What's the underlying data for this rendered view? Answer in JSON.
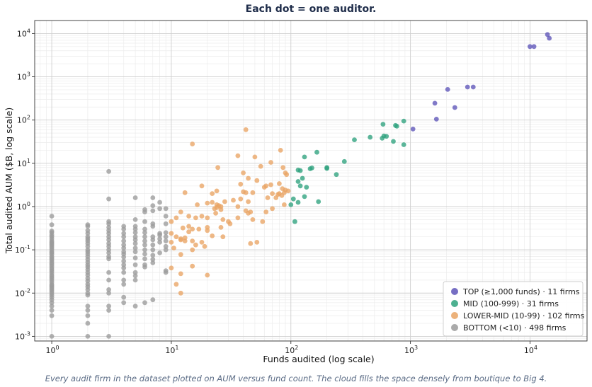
{
  "chart_data": {
    "type": "scatter",
    "title": "Each dot = one auditor.",
    "subtitle": "Every audit firm in the dataset plotted on AUM versus fund count. The cloud fills the space densely from boutique to Big 4.",
    "xlabel": "Funds audited (log scale)",
    "ylabel": "Total audited AUM ($B, log scale)",
    "xscale": "log",
    "yscale": "log",
    "xlim": [
      0.72,
      30000
    ],
    "ylim": [
      0.00078,
      20000
    ],
    "xticks": [
      1,
      10,
      100,
      1000,
      10000
    ],
    "yticks": [
      0.001,
      0.01,
      0.1,
      1,
      10,
      100,
      1000,
      10000
    ],
    "grid": true,
    "legend_position": "bottom-right",
    "colors": {
      "top": "#5e55b8",
      "mid": "#2ea27d",
      "lower_mid": "#e9a464",
      "bottom": "#9b9b9b"
    },
    "series": [
      {
        "key": "top",
        "name": "TOP (≥1,000 funds) · 11 firms",
        "points": [
          [
            14000,
            9500
          ],
          [
            14500,
            7800
          ],
          [
            10000,
            5000
          ],
          [
            10800,
            5000
          ],
          [
            3000,
            580
          ],
          [
            3350,
            580
          ],
          [
            2050,
            510
          ],
          [
            2350,
            195
          ],
          [
            1600,
            245
          ],
          [
            1650,
            105
          ],
          [
            1050,
            62
          ]
        ]
      },
      {
        "key": "mid",
        "name": "MID (100-999) · 31 firms",
        "points": [
          [
            880,
            95
          ],
          [
            590,
            80
          ],
          [
            750,
            75
          ],
          [
            770,
            72
          ],
          [
            460,
            40
          ],
          [
            580,
            38
          ],
          [
            600,
            43
          ],
          [
            630,
            42
          ],
          [
            340,
            35
          ],
          [
            720,
            32
          ],
          [
            880,
            27
          ],
          [
            165,
            18
          ],
          [
            130,
            14
          ],
          [
            280,
            11
          ],
          [
            200,
            8
          ],
          [
            200,
            7.6
          ],
          [
            145,
            7.5
          ],
          [
            115,
            7
          ],
          [
            120,
            6.8
          ],
          [
            240,
            5.5
          ],
          [
            125,
            4.5
          ],
          [
            115,
            3.8
          ],
          [
            120,
            3
          ],
          [
            135,
            2.8
          ],
          [
            130,
            1.7
          ],
          [
            170,
            1.3
          ],
          [
            115,
            1.25
          ],
          [
            105,
            1.5
          ],
          [
            100,
            1.1
          ],
          [
            108,
            0.45
          ],
          [
            150,
            7.8
          ]
        ]
      },
      {
        "key": "lower_mid",
        "name": "LOWER-MID (10-99) · 102 firms",
        "points": [
          [
            15,
            28
          ],
          [
            42,
            60
          ],
          [
            36,
            15
          ],
          [
            50,
            14
          ],
          [
            82,
            20
          ],
          [
            68,
            10.5
          ],
          [
            86,
            8
          ],
          [
            24.5,
            8
          ],
          [
            56,
            8.5
          ],
          [
            90,
            6
          ],
          [
            92,
            5.5
          ],
          [
            40,
            6
          ],
          [
            44,
            4.5
          ],
          [
            52,
            4
          ],
          [
            18,
            3
          ],
          [
            38,
            3.3
          ],
          [
            60,
            2.8
          ],
          [
            62,
            3
          ],
          [
            68,
            3.2
          ],
          [
            80,
            3.4
          ],
          [
            90,
            2.4
          ],
          [
            95,
            2.3
          ],
          [
            85,
            2.6
          ],
          [
            78,
            1.9
          ],
          [
            75,
            1.6
          ],
          [
            13,
            2.1
          ],
          [
            24,
            2.3
          ],
          [
            22,
            2
          ],
          [
            40,
            2.2
          ],
          [
            42,
            2.1
          ],
          [
            48,
            2.1
          ],
          [
            64,
            1.6
          ],
          [
            70,
            2
          ],
          [
            80,
            2
          ],
          [
            84,
            1.8
          ],
          [
            88,
            2.1
          ],
          [
            33,
            1.4
          ],
          [
            28,
            1.3
          ],
          [
            38,
            1.5
          ],
          [
            44,
            1.3
          ],
          [
            16.5,
            1.1
          ],
          [
            20,
            1.2
          ],
          [
            22,
            1.25
          ],
          [
            24,
            1.1
          ],
          [
            25,
            1.05
          ],
          [
            26,
            1
          ],
          [
            23,
            0.9
          ],
          [
            24,
            0.95
          ],
          [
            26,
            0.85
          ],
          [
            36,
            1
          ],
          [
            42,
            0.8
          ],
          [
            46,
            0.75
          ],
          [
            62,
            0.75
          ],
          [
            70,
            0.9
          ],
          [
            88,
            1.1
          ],
          [
            10,
            0.45
          ],
          [
            12,
            0.75
          ],
          [
            14,
            0.6
          ],
          [
            16,
            0.55
          ],
          [
            18,
            0.6
          ],
          [
            20,
            0.55
          ],
          [
            23.5,
            0.7
          ],
          [
            27,
            0.5
          ],
          [
            30,
            0.45
          ],
          [
            31,
            0.4
          ],
          [
            36,
            0.55
          ],
          [
            44,
            0.7
          ],
          [
            48,
            0.5
          ],
          [
            11,
            0.55
          ],
          [
            12.5,
            0.32
          ],
          [
            14,
            0.35
          ],
          [
            15,
            0.3
          ],
          [
            17,
            0.3
          ],
          [
            20,
            0.33
          ],
          [
            26,
            0.33
          ],
          [
            10,
            0.24
          ],
          [
            11,
            0.2
          ],
          [
            12,
            0.18
          ],
          [
            13,
            0.16
          ],
          [
            15,
            0.16
          ],
          [
            18,
            0.15
          ],
          [
            20,
            0.28
          ],
          [
            22,
            0.21
          ],
          [
            27,
            0.2
          ],
          [
            10,
            0.15
          ],
          [
            12,
            0.17
          ],
          [
            16,
            0.13
          ],
          [
            19,
            0.12
          ],
          [
            46,
            0.14
          ],
          [
            52,
            0.15
          ],
          [
            58,
            0.45
          ],
          [
            12,
            0.078
          ],
          [
            15,
            0.1
          ],
          [
            10,
            0.038
          ],
          [
            12,
            0.028
          ],
          [
            15,
            0.042
          ],
          [
            20,
            0.026
          ],
          [
            11,
            0.016
          ],
          [
            12,
            0.01
          ],
          [
            10.5,
            0.11
          ],
          [
            13,
            0.19
          ],
          [
            14,
            0.26
          ]
        ]
      },
      {
        "key": "bottom",
        "name": "BOTTOM (<10) · 498 firms",
        "points": [
          [
            1,
            0.6
          ],
          [
            1,
            0.38
          ],
          [
            1,
            0.27
          ],
          [
            1,
            0.25
          ],
          [
            1,
            0.22
          ],
          [
            1,
            0.2
          ],
          [
            1,
            0.18
          ],
          [
            1,
            0.16
          ],
          [
            1,
            0.15
          ],
          [
            1,
            0.14
          ],
          [
            1,
            0.13
          ],
          [
            1,
            0.12
          ],
          [
            1,
            0.11
          ],
          [
            1,
            0.1
          ],
          [
            1,
            0.09
          ],
          [
            1,
            0.085
          ],
          [
            1,
            0.078
          ],
          [
            1,
            0.07
          ],
          [
            1,
            0.065
          ],
          [
            1,
            0.06
          ],
          [
            1,
            0.055
          ],
          [
            1,
            0.05
          ],
          [
            1,
            0.046
          ],
          [
            1,
            0.042
          ],
          [
            1,
            0.038
          ],
          [
            1,
            0.035
          ],
          [
            1,
            0.032
          ],
          [
            1,
            0.029
          ],
          [
            1,
            0.026
          ],
          [
            1,
            0.024
          ],
          [
            1,
            0.022
          ],
          [
            1,
            0.02
          ],
          [
            1,
            0.018
          ],
          [
            1,
            0.016
          ],
          [
            1,
            0.015
          ],
          [
            1,
            0.014
          ],
          [
            1,
            0.013
          ],
          [
            1,
            0.012
          ],
          [
            1,
            0.011
          ],
          [
            1,
            0.01
          ],
          [
            1,
            0.009
          ],
          [
            1,
            0.008
          ],
          [
            1,
            0.007
          ],
          [
            1,
            0.006
          ],
          [
            1,
            0.005
          ],
          [
            1,
            0.004
          ],
          [
            1,
            0.003
          ],
          [
            1,
            0.001
          ],
          [
            2,
            0.38
          ],
          [
            2,
            0.35
          ],
          [
            2,
            0.28
          ],
          [
            2,
            0.24
          ],
          [
            2,
            0.2
          ],
          [
            2,
            0.18
          ],
          [
            2,
            0.16
          ],
          [
            2,
            0.14
          ],
          [
            2,
            0.12
          ],
          [
            2,
            0.1
          ],
          [
            2,
            0.09
          ],
          [
            2,
            0.08
          ],
          [
            2,
            0.07
          ],
          [
            2,
            0.06
          ],
          [
            2,
            0.052
          ],
          [
            2,
            0.045
          ],
          [
            2,
            0.04
          ],
          [
            2,
            0.035
          ],
          [
            2,
            0.03
          ],
          [
            2,
            0.026
          ],
          [
            2,
            0.022
          ],
          [
            2,
            0.019
          ],
          [
            2,
            0.016
          ],
          [
            2,
            0.014
          ],
          [
            2,
            0.012
          ],
          [
            2,
            0.01
          ],
          [
            2,
            0.009
          ],
          [
            2,
            0.005
          ],
          [
            2,
            0.004
          ],
          [
            2,
            0.003
          ],
          [
            2,
            0.002
          ],
          [
            2,
            0.001
          ],
          [
            3,
            6.5
          ],
          [
            3,
            1.5
          ],
          [
            3,
            0.45
          ],
          [
            3,
            0.4
          ],
          [
            3,
            0.33
          ],
          [
            3,
            0.28
          ],
          [
            3,
            0.24
          ],
          [
            3,
            0.2
          ],
          [
            3,
            0.17
          ],
          [
            3,
            0.14
          ],
          [
            3,
            0.12
          ],
          [
            3,
            0.1
          ],
          [
            3,
            0.085
          ],
          [
            3,
            0.07
          ],
          [
            3,
            0.062
          ],
          [
            3,
            0.03
          ],
          [
            3,
            0.02
          ],
          [
            3,
            0.012
          ],
          [
            3,
            0.01
          ],
          [
            3,
            0.005
          ],
          [
            3,
            0.004
          ],
          [
            3,
            0.001
          ],
          [
            4,
            0.35
          ],
          [
            4,
            0.3
          ],
          [
            4,
            0.24
          ],
          [
            4,
            0.2
          ],
          [
            4,
            0.16
          ],
          [
            4,
            0.13
          ],
          [
            4,
            0.11
          ],
          [
            4,
            0.09
          ],
          [
            4,
            0.08
          ],
          [
            4,
            0.068
          ],
          [
            4,
            0.055
          ],
          [
            4,
            0.045
          ],
          [
            4,
            0.038
          ],
          [
            4,
            0.03
          ],
          [
            4,
            0.02
          ],
          [
            4,
            0.016
          ],
          [
            4,
            0.008
          ],
          [
            4,
            0.006
          ],
          [
            5,
            1.6
          ],
          [
            5,
            0.5
          ],
          [
            5,
            0.35
          ],
          [
            5,
            0.3
          ],
          [
            5,
            0.25
          ],
          [
            5,
            0.2
          ],
          [
            5,
            0.17
          ],
          [
            5,
            0.14
          ],
          [
            5,
            0.11
          ],
          [
            5,
            0.09
          ],
          [
            5,
            0.065
          ],
          [
            5,
            0.045
          ],
          [
            5,
            0.03
          ],
          [
            5,
            0.025
          ],
          [
            5,
            0.02
          ],
          [
            5,
            0.005
          ],
          [
            6,
            0.85
          ],
          [
            6,
            0.75
          ],
          [
            6,
            0.45
          ],
          [
            6,
            0.3
          ],
          [
            6,
            0.25
          ],
          [
            6,
            0.2
          ],
          [
            6,
            0.16
          ],
          [
            6,
            0.13
          ],
          [
            6,
            0.1
          ],
          [
            6,
            0.08
          ],
          [
            6,
            0.062
          ],
          [
            6,
            0.045
          ],
          [
            6,
            0.04
          ],
          [
            6,
            0.006
          ],
          [
            7,
            1.6
          ],
          [
            7,
            1.05
          ],
          [
            7,
            0.8
          ],
          [
            7,
            0.4
          ],
          [
            7,
            0.35
          ],
          [
            7,
            0.2
          ],
          [
            7,
            0.17
          ],
          [
            7,
            0.13
          ],
          [
            7,
            0.1
          ],
          [
            7,
            0.075
          ],
          [
            7,
            0.06
          ],
          [
            7,
            0.05
          ],
          [
            7,
            0.007
          ],
          [
            8,
            1.25
          ],
          [
            8,
            0.9
          ],
          [
            8,
            0.24
          ],
          [
            8,
            0.22
          ],
          [
            8,
            0.18
          ],
          [
            8,
            0.15
          ],
          [
            8,
            0.085
          ],
          [
            9,
            0.9
          ],
          [
            9,
            0.6
          ],
          [
            9,
            0.4
          ],
          [
            9,
            0.25
          ],
          [
            9,
            0.2
          ],
          [
            9,
            0.16
          ],
          [
            9,
            0.12
          ],
          [
            9,
            0.1
          ],
          [
            9,
            0.033
          ],
          [
            9,
            0.03
          ]
        ]
      }
    ]
  }
}
